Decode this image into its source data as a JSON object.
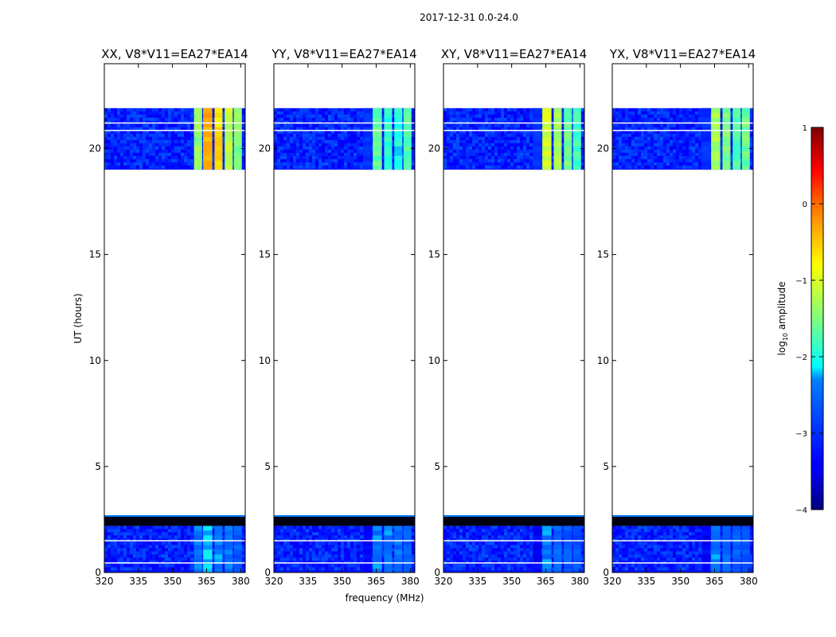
{
  "chart_data": {
    "type": "heatmap",
    "suptitle": "2017-12-31 0.0-24.0",
    "xlabel": "frequency (MHz)",
    "ylabel": "UT (hours)",
    "xlim": [
      320,
      382
    ],
    "ylim": [
      0,
      24
    ],
    "xticks": [
      "320",
      "335",
      "350",
      "365",
      "380"
    ],
    "yticks": [
      "0",
      "5",
      "10",
      "15",
      "20"
    ],
    "colorbar": {
      "label": "log10 amplitude",
      "label_prefix": "log",
      "label_sub": "10",
      "label_suffix": " amplitude",
      "range": [
        -4,
        1
      ],
      "ticks": [
        "−4",
        "−3",
        "−2",
        "−1",
        "0",
        "1"
      ]
    },
    "data_blocks_ut": [
      [
        0.0,
        2.2
      ],
      [
        19.0,
        21.9
      ]
    ],
    "flagged_band_ut": [
      2.2,
      2.7
    ],
    "panels": [
      {
        "title": "XX, V8*V11=EA27*EA14",
        "bright_channels_mhz": [
          [
            359.5,
            363.0
          ],
          [
            363.5,
            367.5
          ],
          [
            368.5,
            372.0
          ],
          [
            373.0,
            376.5
          ],
          [
            377.0,
            380.5
          ]
        ],
        "upper_level": [
          -1.4,
          -0.3,
          -0.6,
          -1.1,
          -1.5
        ],
        "lower_level": [
          -2.4,
          -2.2,
          -2.4,
          -2.5,
          -2.6
        ]
      },
      {
        "title": "YY, V8*V11=EA27*EA14",
        "bright_channels_mhz": [
          [
            359.5,
            363.0
          ],
          [
            363.5,
            367.5
          ],
          [
            368.5,
            372.0
          ],
          [
            373.0,
            376.5
          ],
          [
            377.0,
            380.5
          ]
        ],
        "upper_level": [
          -3.0,
          -1.7,
          -1.9,
          -2.0,
          -1.7
        ],
        "lower_level": [
          -3.4,
          -2.4,
          -2.4,
          -2.5,
          -2.6
        ]
      },
      {
        "title": "XY, V8*V11=EA27*EA14",
        "bright_channels_mhz": [
          [
            359.5,
            363.0
          ],
          [
            363.5,
            367.5
          ],
          [
            368.5,
            372.0
          ],
          [
            373.0,
            376.5
          ],
          [
            377.0,
            380.5
          ]
        ],
        "upper_level": [
          -3.0,
          -1.1,
          -1.3,
          -1.6,
          -1.8
        ],
        "lower_level": [
          -3.4,
          -2.4,
          -2.5,
          -2.6,
          -2.7
        ]
      },
      {
        "title": "YX, V8*V11=EA27*EA14",
        "bright_channels_mhz": [
          [
            359.5,
            363.0
          ],
          [
            363.5,
            367.5
          ],
          [
            368.5,
            372.0
          ],
          [
            373.0,
            376.5
          ],
          [
            377.0,
            380.5
          ]
        ],
        "upper_level": [
          -3.0,
          -1.3,
          -1.5,
          -1.7,
          -1.6
        ],
        "lower_level": [
          -3.4,
          -2.4,
          -2.5,
          -2.6,
          -2.7
        ]
      }
    ]
  }
}
